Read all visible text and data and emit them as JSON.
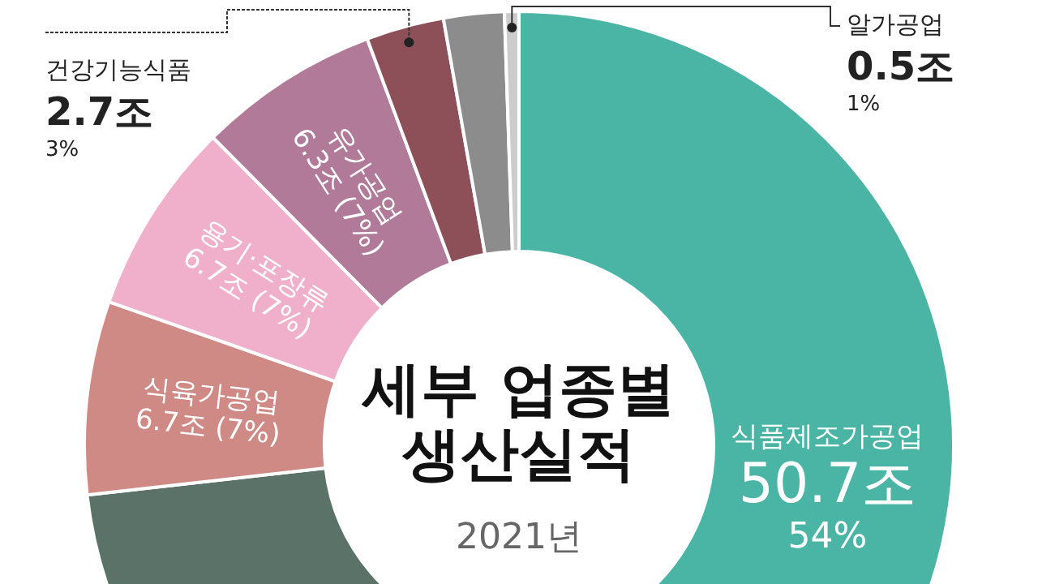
{
  "chart_data": {
    "type": "donut",
    "title": "세부 업종별 생산실적",
    "subtitle": "2021년",
    "categories": [
      "식품제조가공업",
      null,
      "식육가공업",
      "용기·포장류",
      "유가공업",
      "건강기능식품",
      null,
      "알가공업"
    ],
    "values": [
      50.7,
      17.6,
      6.7,
      6.7,
      6.3,
      2.7,
      2.1,
      0.5
    ],
    "colors": [
      "#4bb5a5",
      "#5a7268",
      "#d08a86",
      "#f0b0cc",
      "#b07a98",
      "#8e5058",
      "#8c8c8c",
      "#cccccc"
    ],
    "value_labels": [
      "50.7조\n54%",
      null,
      "6.7조 (7%)",
      "6.7조 (7%)",
      "6.3조 (7%)",
      "2.7조\n3%",
      null,
      "0.5조\n1%"
    ]
  }
}
